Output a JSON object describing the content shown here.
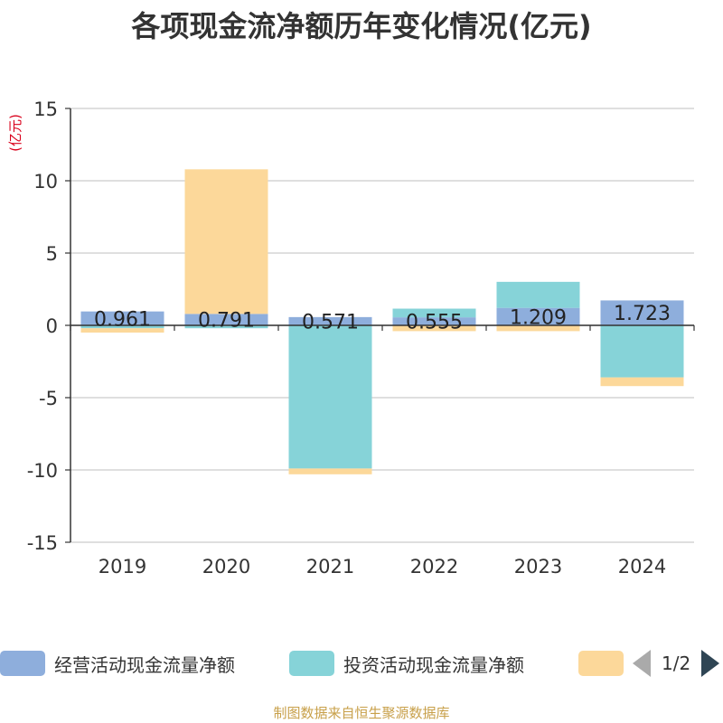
{
  "chart_data": {
    "type": "bar",
    "stacked": true,
    "title": "各项现金流净额历年变化情况(亿元)",
    "ylabel": "(亿元)",
    "ylim": [
      -15,
      15
    ],
    "yticks": [
      "15",
      "10",
      "5",
      "0",
      "-5",
      "-10",
      "-15"
    ],
    "grid": true,
    "categories": [
      "2019",
      "2020",
      "2021",
      "2022",
      "2023",
      "2024"
    ],
    "series": [
      {
        "name": "经营活动现金流量净额",
        "color": "#8eaedc",
        "values": [
          0.961,
          0.791,
          0.571,
          0.555,
          1.209,
          1.723
        ],
        "labels": [
          "0.961",
          "0.791",
          "0.571",
          "0.555",
          "1.209",
          "1.723"
        ]
      },
      {
        "name": "投资活动现金流量净额",
        "color": "#86d3d8",
        "values": [
          -0.2,
          -0.2,
          -9.9,
          0.6,
          1.8,
          -3.6
        ]
      },
      {
        "name": "",
        "color": "#fcd89a",
        "values": [
          -0.3,
          10.0,
          -0.4,
          -0.4,
          -0.4,
          -0.6
        ]
      }
    ],
    "legend_position": "bottom",
    "legend_page": "1/2"
  },
  "source": "制图数据来自恒生聚源数据库"
}
